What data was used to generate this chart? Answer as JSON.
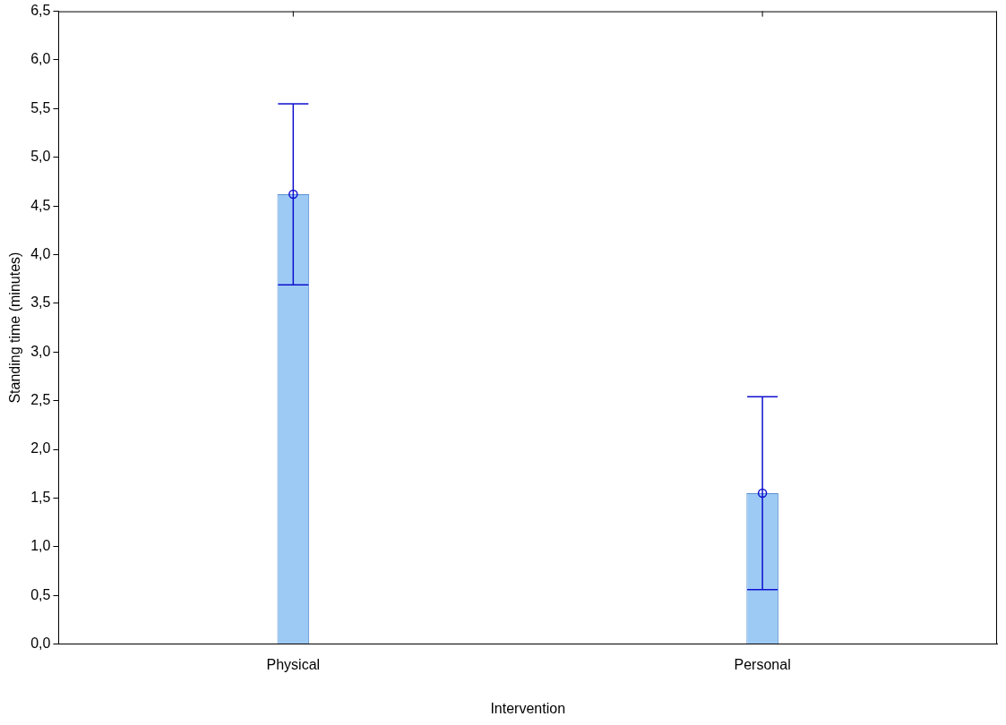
{
  "chart_data": {
    "type": "bar",
    "xlabel": "Intervention",
    "ylabel": "Standing time (minutes)",
    "categories": [
      "Physical",
      "Personal"
    ],
    "series": [
      {
        "color": "#9ccaf5",
        "values": [
          4.62,
          1.55
        ],
        "errors": [
          0.93,
          0.99
        ]
      },
      {
        "type": "scatter",
        "x": [
          "Physical",
          "Personal"
        ],
        "color": "#1010d0",
        "values": [
          4.62,
          1.55
        ],
        "marker": "circle"
      }
    ],
    "ylim": [
      0,
      6.5
    ],
    "yticks": [
      {
        "value": 0,
        "label": "0,0"
      },
      {
        "value": 0.5,
        "label": "0,5"
      },
      {
        "value": 1,
        "label": "1,0"
      },
      {
        "value": 1.5,
        "label": "1,5"
      },
      {
        "value": 2,
        "label": "2,0"
      },
      {
        "value": 2.5,
        "label": "2,5"
      },
      {
        "value": 3,
        "label": "3,0"
      },
      {
        "value": 3.5,
        "label": "3,5"
      },
      {
        "value": 4,
        "label": "4,0"
      },
      {
        "value": 4.5,
        "label": "4,5"
      },
      {
        "value": 5,
        "label": "5,0"
      },
      {
        "value": 5.5,
        "label": "5,5"
      },
      {
        "value": 6,
        "label": "6,0"
      },
      {
        "value": 6.5,
        "label": "6,5"
      }
    ],
    "grid": false,
    "legend": false
  }
}
